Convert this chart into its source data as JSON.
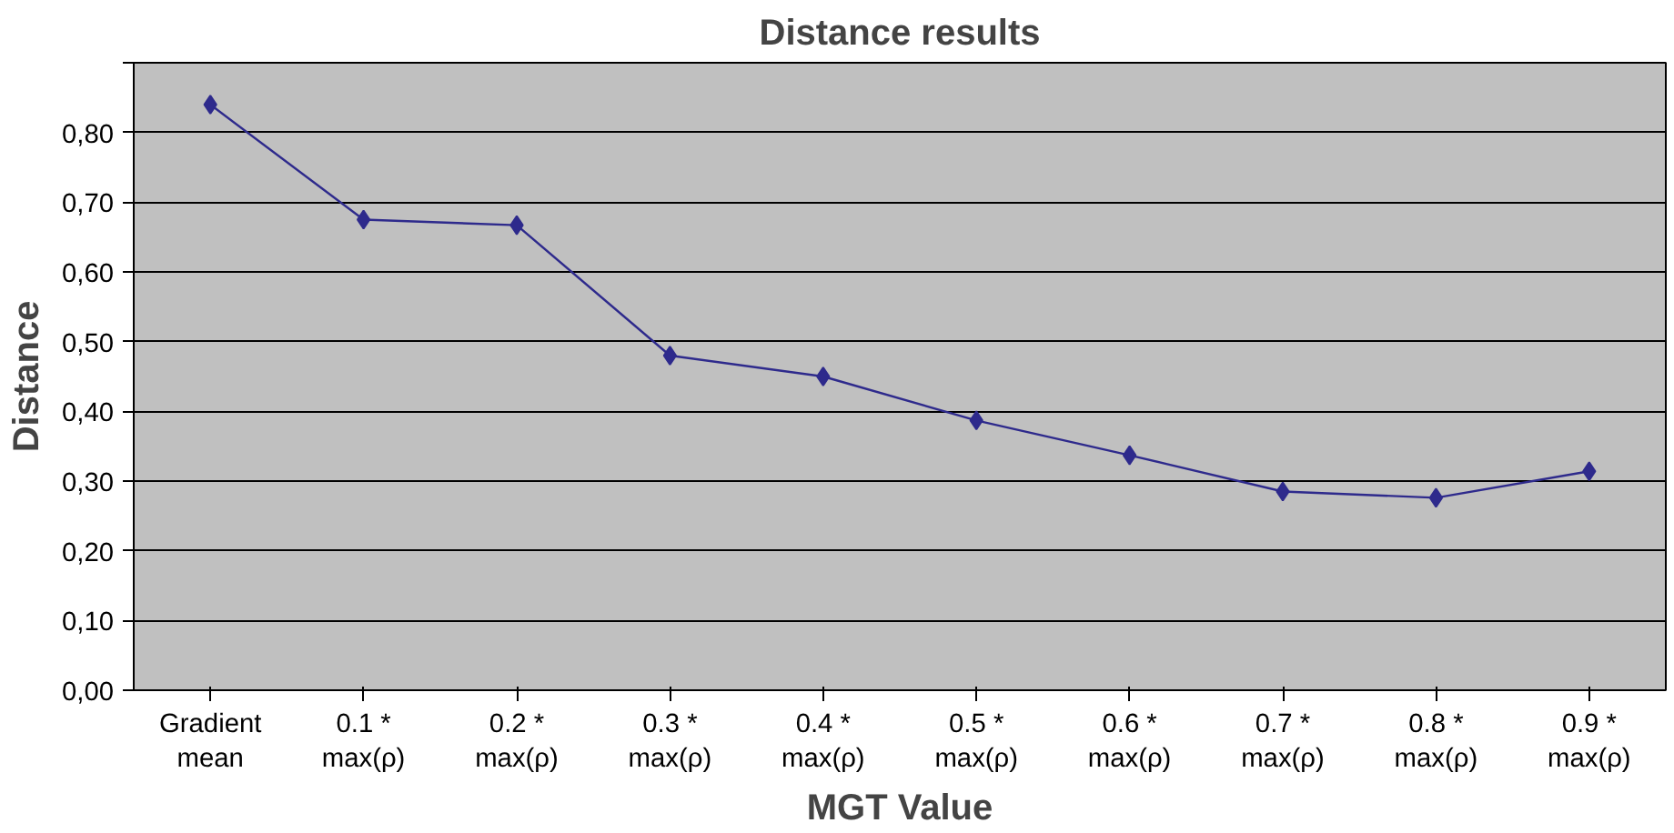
{
  "chart_data": {
    "type": "line",
    "title": "Distance results",
    "xlabel": "MGT Value",
    "ylabel": "Distance",
    "categories": [
      "Gradient mean",
      "0.1 * max(ρ)",
      "0.2 * max(ρ)",
      "0.3 * max(ρ)",
      "0.4 * max(ρ)",
      "0.5 * max(ρ)",
      "0.6 * max(ρ)",
      "0.7 * max(ρ)",
      "0.8 * max(ρ)",
      "0.9 * max(ρ)"
    ],
    "series": [
      {
        "color": "#2e2a8c",
        "values": [
          0.84,
          0.675,
          0.667,
          0.48,
          0.45,
          0.387,
          0.337,
          0.285,
          0.276,
          0.314
        ]
      }
    ],
    "ylim": [
      0,
      0.9
    ],
    "yticks": [
      {
        "value": 0,
        "label": "0,00"
      },
      {
        "value": 0.1,
        "label": "0,10"
      },
      {
        "value": 0.2,
        "label": "0,20"
      },
      {
        "value": 0.3,
        "label": "0,30"
      },
      {
        "value": 0.4,
        "label": "0,40"
      },
      {
        "value": 0.5,
        "label": "0,50"
      },
      {
        "value": 0.6,
        "label": "0,60"
      },
      {
        "value": 0.7,
        "label": "0,70"
      },
      {
        "value": 0.8,
        "label": "0,80"
      },
      {
        "value": 0.9,
        "label": null
      }
    ],
    "grid": "y",
    "marker": "diamond",
    "line_style": "solid"
  }
}
